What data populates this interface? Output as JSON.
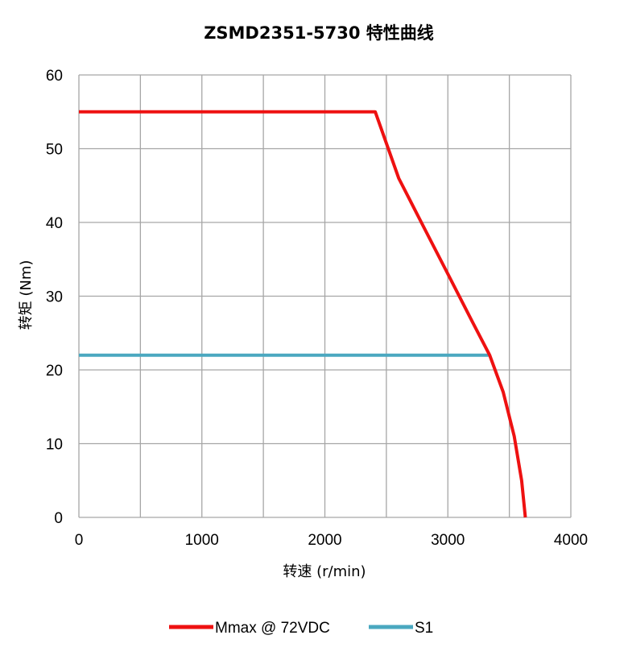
{
  "chart_data": {
    "type": "line",
    "title": "ZSMD2351-5730 特性曲线",
    "xlabel": "转速 (r/min)",
    "ylabel": "转矩 (Nm)",
    "xlim": [
      0,
      4000
    ],
    "ylim": [
      0,
      60
    ],
    "x_ticks": [
      "0",
      "1000",
      "2000",
      "3000",
      "4000"
    ],
    "y_ticks": [
      "0",
      "10",
      "20",
      "30",
      "40",
      "50",
      "60"
    ],
    "grid": true,
    "legend_position": "bottom",
    "series": [
      {
        "name": "Mmax @ 72VDC",
        "color": "#ee1111",
        "x": [
          0,
          2410,
          2600,
          2800,
          3000,
          3200,
          3340,
          3450,
          3540,
          3600,
          3630
        ],
        "y": [
          55,
          55,
          46,
          39.5,
          33,
          26.5,
          22,
          17,
          11,
          5,
          0
        ]
      },
      {
        "name": "S1",
        "color": "#4aa8c0",
        "x": [
          0,
          3330
        ],
        "y": [
          22,
          22
        ]
      }
    ]
  }
}
